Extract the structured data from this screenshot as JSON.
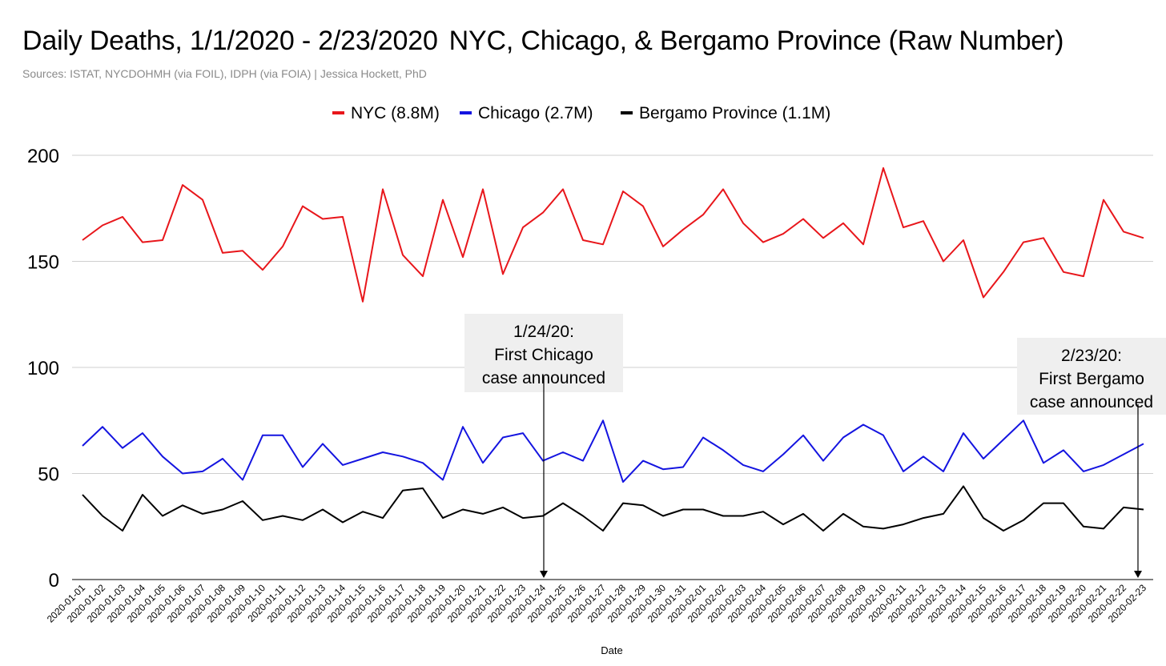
{
  "title_part1": "Daily Deaths, 1/1/2020 - 2/23/2020",
  "title_part2": "NYC, Chicago, & Bergamo Province (Raw Number)",
  "subtitle": "Sources: ISTAT, NYCDOHMH (via FOIL), IDPH (via FOIA) | Jessica Hockett, PhD",
  "chart_data": {
    "type": "line",
    "title": "Daily Deaths, 1/1/2020 - 2/23/2020 NYC, Chicago, & Bergamo Province (Raw Number)",
    "xlabel": "Date",
    "ylabel": "",
    "ylim": [
      0,
      200
    ],
    "yticks": [
      0,
      50,
      100,
      150,
      200
    ],
    "grid": true,
    "legend_position": "top-center",
    "categories": [
      "2020-01-01",
      "2020-01-02",
      "2020-01-03",
      "2020-01-04",
      "2020-01-05",
      "2020-01-06",
      "2020-01-07",
      "2020-01-08",
      "2020-01-09",
      "2020-01-10",
      "2020-01-11",
      "2020-01-12",
      "2020-01-13",
      "2020-01-14",
      "2020-01-15",
      "2020-01-16",
      "2020-01-17",
      "2020-01-18",
      "2020-01-19",
      "2020-01-20",
      "2020-01-21",
      "2020-01-22",
      "2020-01-23",
      "2020-01-24",
      "2020-01-25",
      "2020-01-26",
      "2020-01-27",
      "2020-01-28",
      "2020-01-29",
      "2020-01-30",
      "2020-01-31",
      "2020-02-01",
      "2020-02-02",
      "2020-02-03",
      "2020-02-04",
      "2020-02-05",
      "2020-02-06",
      "2020-02-07",
      "2020-02-08",
      "2020-02-09",
      "2020-02-10",
      "2020-02-11",
      "2020-02-12",
      "2020-02-13",
      "2020-02-14",
      "2020-02-15",
      "2020-02-16",
      "2020-02-17",
      "2020-02-18",
      "2020-02-19",
      "2020-02-20",
      "2020-02-21",
      "2020-02-22",
      "2020-02-23"
    ],
    "series": [
      {
        "name": "NYC (8.8M)",
        "color": "#e8161b",
        "values": [
          160,
          167,
          171,
          159,
          160,
          186,
          179,
          154,
          155,
          146,
          157,
          176,
          170,
          171,
          131,
          184,
          153,
          143,
          179,
          152,
          184,
          144,
          166,
          173,
          184,
          160,
          158,
          183,
          176,
          157,
          165,
          172,
          184,
          168,
          159,
          163,
          170,
          161,
          168,
          158,
          194,
          166,
          169,
          150,
          160,
          133,
          145,
          159,
          161,
          145,
          143,
          179,
          164,
          161
        ]
      },
      {
        "name": "Chicago (2.7M)",
        "color": "#1414e0",
        "values": [
          63,
          72,
          62,
          69,
          58,
          50,
          51,
          57,
          47,
          68,
          68,
          53,
          64,
          54,
          57,
          60,
          58,
          55,
          47,
          72,
          55,
          67,
          69,
          56,
          60,
          56,
          75,
          46,
          56,
          52,
          53,
          67,
          61,
          54,
          51,
          59,
          68,
          56,
          67,
          73,
          68,
          51,
          58,
          51,
          69,
          57,
          66,
          75,
          55,
          61,
          51,
          54,
          59,
          64
        ]
      },
      {
        "name": "Bergamo Province (1.1M)",
        "color": "#000000",
        "values": [
          40,
          30,
          23,
          40,
          30,
          35,
          31,
          33,
          37,
          28,
          30,
          28,
          33,
          27,
          32,
          29,
          42,
          43,
          29,
          33,
          31,
          34,
          29,
          30,
          36,
          30,
          23,
          36,
          35,
          30,
          33,
          33,
          30,
          30,
          32,
          26,
          31,
          23,
          31,
          25,
          24,
          26,
          29,
          31,
          44,
          29,
          23,
          28,
          36,
          36,
          25,
          24,
          34,
          33
        ]
      }
    ],
    "annotations": [
      {
        "date": "2020-01-24",
        "lines": [
          "1/24/20:",
          "First Chicago",
          "case announced"
        ]
      },
      {
        "date": "2020-02-23",
        "lines": [
          "2/23/20:",
          "First Bergamo",
          "case announced"
        ]
      }
    ]
  }
}
